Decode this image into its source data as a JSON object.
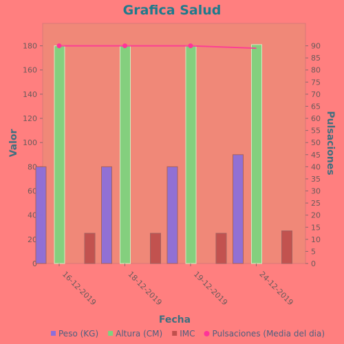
{
  "colors": {
    "background": "#FF7F7F",
    "plot_background": "#F08878",
    "title": "#1F7A8C",
    "axis_label": "#3F6F7F",
    "peso": "#8C6FD9",
    "altura": "#7FD37F",
    "imc": "#C0504D",
    "pulsaciones": "#FF3399"
  },
  "chart_data": {
    "type": "bar",
    "title": "Grafica Salud",
    "xlabel": "Fecha",
    "ylabel": "Valor",
    "y2label": "Pulsaciones",
    "categories": [
      "16-12-2019",
      "18-12-2019",
      "19-12-2019",
      "24-12-2019"
    ],
    "ylim": [
      0,
      190
    ],
    "y2lim": [
      0,
      95
    ],
    "yticks": [
      0,
      20,
      40,
      60,
      80,
      100,
      120,
      140,
      160,
      180
    ],
    "y2ticks": [
      0,
      5,
      10,
      15,
      20,
      25,
      30,
      35,
      40,
      45,
      50,
      55,
      60,
      65,
      70,
      75,
      80,
      85,
      90
    ],
    "grid": false,
    "legend_position": "bottom",
    "series": [
      {
        "name": "Peso (KG)",
        "type": "bar",
        "axis": "left",
        "values": [
          80,
          80,
          80,
          90
        ]
      },
      {
        "name": "Altura (CM)",
        "type": "bar",
        "axis": "left",
        "values": [
          180,
          180,
          180,
          181
        ]
      },
      {
        "name": "IMC",
        "type": "bar",
        "axis": "left",
        "values": [
          25,
          25,
          25,
          27
        ]
      },
      {
        "name": "Pulsaciones (Media del dia)",
        "type": "line",
        "axis": "right",
        "values": [
          90,
          90,
          90,
          89
        ]
      }
    ]
  }
}
